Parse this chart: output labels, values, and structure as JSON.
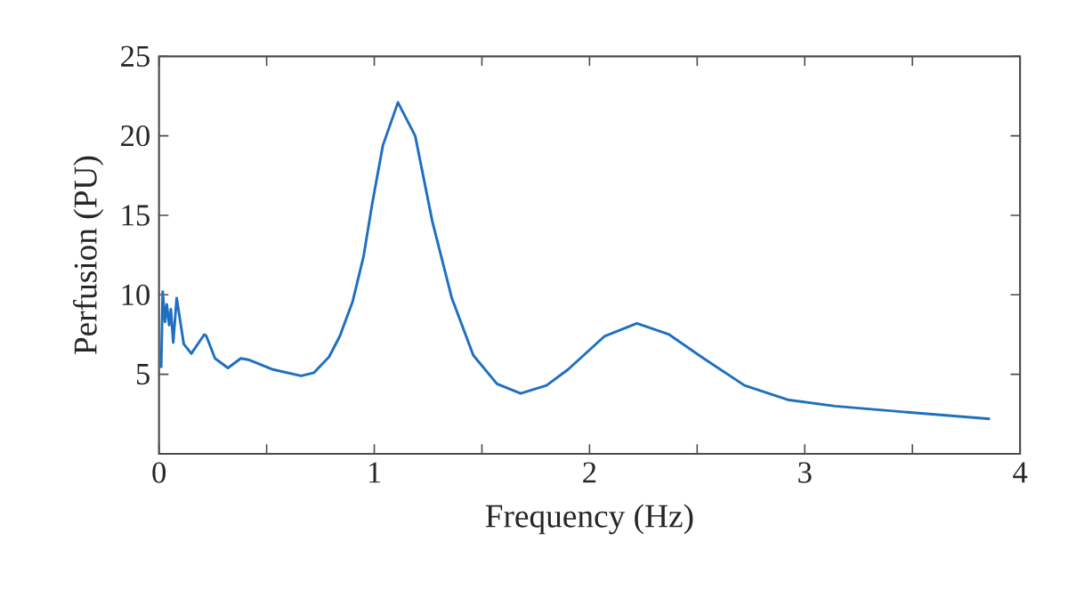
{
  "chart_data": {
    "type": "line",
    "xlabel": "Frequency (Hz)",
    "ylabel": "Perfusion (PU)",
    "xlim": [
      0,
      4
    ],
    "ylim": [
      0,
      25
    ],
    "xticks": [
      0,
      {
        "value": 0.5,
        "label": null
      },
      1,
      {
        "value": 1.5,
        "label": null
      },
      2,
      {
        "value": 2.5,
        "label": null
      },
      3,
      {
        "value": 3.5,
        "label": null
      },
      4
    ],
    "yticks": [
      5,
      10,
      15,
      20,
      25
    ],
    "series": [
      {
        "color": "#1f6fc0",
        "x": [
          0.01,
          0.017,
          0.028,
          0.036,
          0.047,
          0.055,
          0.066,
          0.082,
          0.115,
          0.15,
          0.21,
          0.22,
          0.26,
          0.32,
          0.38,
          0.42,
          0.53,
          0.66,
          0.72,
          0.79,
          0.84,
          0.9,
          0.95,
          0.99,
          1.04,
          1.11,
          1.19,
          1.27,
          1.36,
          1.46,
          1.57,
          1.68,
          1.8,
          1.9,
          2.07,
          2.22,
          2.37,
          2.53,
          2.72,
          2.92,
          3.14,
          3.49,
          3.86
        ],
        "values": [
          5.4,
          10.2,
          8.3,
          9.4,
          8.1,
          9.1,
          7.0,
          9.8,
          6.9,
          6.3,
          7.5,
          7.4,
          6.0,
          5.4,
          6.0,
          5.9,
          5.3,
          4.9,
          5.1,
          6.1,
          7.4,
          9.6,
          12.4,
          15.7,
          19.4,
          22.1,
          20.0,
          14.6,
          9.8,
          6.2,
          4.4,
          3.8,
          4.3,
          5.3,
          7.4,
          8.2,
          7.5,
          6.0,
          4.3,
          3.4,
          3.0,
          2.6,
          2.2
        ]
      }
    ]
  }
}
